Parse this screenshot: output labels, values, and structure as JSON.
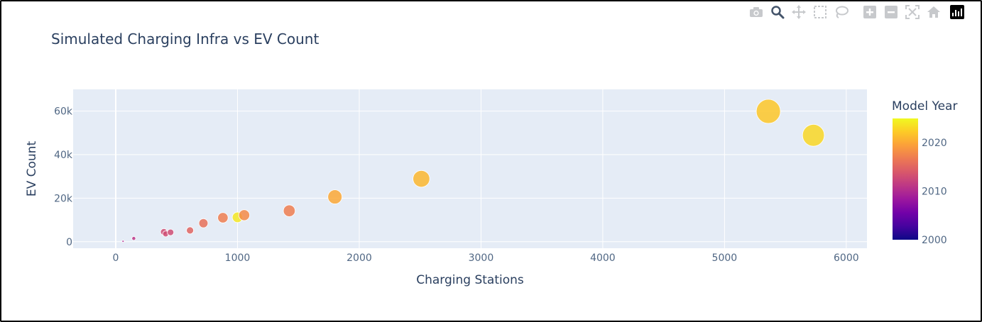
{
  "chart_data": {
    "type": "scatter",
    "title": "Simulated Charging Infra vs EV Count",
    "xlabel": "Charging Stations",
    "ylabel": "EV Count",
    "xlim": [
      -350,
      6170
    ],
    "ylim": [
      -3000,
      70000
    ],
    "x_ticks": [
      0,
      1000,
      2000,
      3000,
      4000,
      5000,
      6000
    ],
    "x_tick_labels": [
      "0",
      "1000",
      "2000",
      "3000",
      "4000",
      "5000",
      "6000"
    ],
    "y_ticks": [
      0,
      20000,
      40000,
      60000
    ],
    "y_tick_labels": [
      "0",
      "20k",
      "40k",
      "60k"
    ],
    "grid": true,
    "marker_size_by": "EV Count",
    "color_by": "Model Year",
    "points": [
      {
        "x": 60,
        "y": 200,
        "year": 2010
      },
      {
        "x": 148,
        "y": 1500,
        "year": 2011
      },
      {
        "x": 395,
        "y": 4500,
        "year": 2013
      },
      {
        "x": 410,
        "y": 3600,
        "year": 2013
      },
      {
        "x": 450,
        "y": 4300,
        "year": 2013
      },
      {
        "x": 610,
        "y": 5200,
        "year": 2015
      },
      {
        "x": 720,
        "y": 8500,
        "year": 2016
      },
      {
        "x": 880,
        "y": 11000,
        "year": 2017
      },
      {
        "x": 1000,
        "y": 11200,
        "year": 2024
      },
      {
        "x": 1055,
        "y": 12200,
        "year": 2018
      },
      {
        "x": 1425,
        "y": 14200,
        "year": 2017
      },
      {
        "x": 1800,
        "y": 20600,
        "year": 2020
      },
      {
        "x": 2510,
        "y": 28900,
        "year": 2021
      },
      {
        "x": 5360,
        "y": 59900,
        "year": 2022
      },
      {
        "x": 5730,
        "y": 48900,
        "year": 2023
      }
    ],
    "colorbar": {
      "title": "Model Year",
      "min": 2000,
      "max": 2025,
      "tick_values": [
        2000,
        2010,
        2020
      ],
      "tick_labels": [
        "2000",
        "2010",
        "2020"
      ],
      "colorscale": [
        "#0d0887",
        "#46039f",
        "#7201a8",
        "#9c179e",
        "#bd3786",
        "#d8576b",
        "#ed7953",
        "#fb9f3a",
        "#fdca26",
        "#f0f921"
      ]
    },
    "colors": {
      "plot_bg": "#e5ecf6",
      "grid": "#ffffff",
      "text": "#2a3f5f",
      "tick_text": "#506784"
    }
  },
  "modebar": {
    "icons": [
      "camera-icon",
      "zoom-icon",
      "pan-icon",
      "box-select-icon",
      "lasso-select-icon",
      "zoom-in-icon",
      "zoom-out-icon",
      "autoscale-icon",
      "reset-axes-icon",
      "plotly-logo-icon"
    ],
    "active": "zoom-icon"
  }
}
